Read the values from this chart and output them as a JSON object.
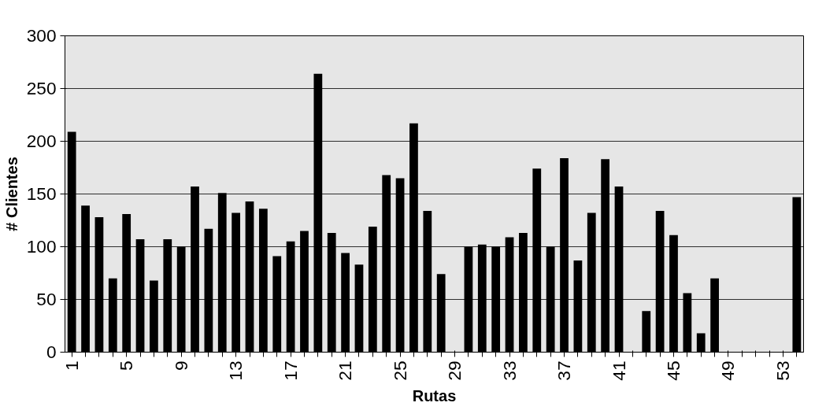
{
  "chart_data": {
    "type": "bar",
    "xlabel": "Rutas",
    "ylabel": "# Clientes",
    "categories": [
      "1",
      null,
      null,
      null,
      "5",
      null,
      null,
      null,
      "9",
      null,
      null,
      null,
      "13",
      null,
      null,
      null,
      "17",
      null,
      null,
      null,
      "21",
      null,
      null,
      null,
      "25",
      null,
      null,
      null,
      "29",
      null,
      null,
      null,
      "33",
      null,
      null,
      null,
      "37",
      null,
      null,
      null,
      "41",
      null,
      null,
      null,
      "45",
      null,
      null,
      null,
      "49",
      null,
      null,
      null,
      "53",
      null
    ],
    "values": [
      209,
      139,
      128,
      70,
      131,
      107,
      68,
      107,
      100,
      157,
      117,
      151,
      132,
      143,
      136,
      91,
      105,
      115,
      264,
      113,
      94,
      83,
      119,
      168,
      165,
      217,
      134,
      74,
      0,
      100,
      102,
      100,
      109,
      113,
      174,
      100,
      184,
      87,
      132,
      183,
      157,
      0,
      39,
      134,
      111,
      56,
      18,
      70,
      0,
      0,
      0,
      0,
      0,
      147
    ],
    "color": "#000000",
    "ylim": [
      0,
      300
    ],
    "yticks": [
      0,
      50,
      100,
      150,
      200,
      250,
      300
    ],
    "grid": "y"
  }
}
